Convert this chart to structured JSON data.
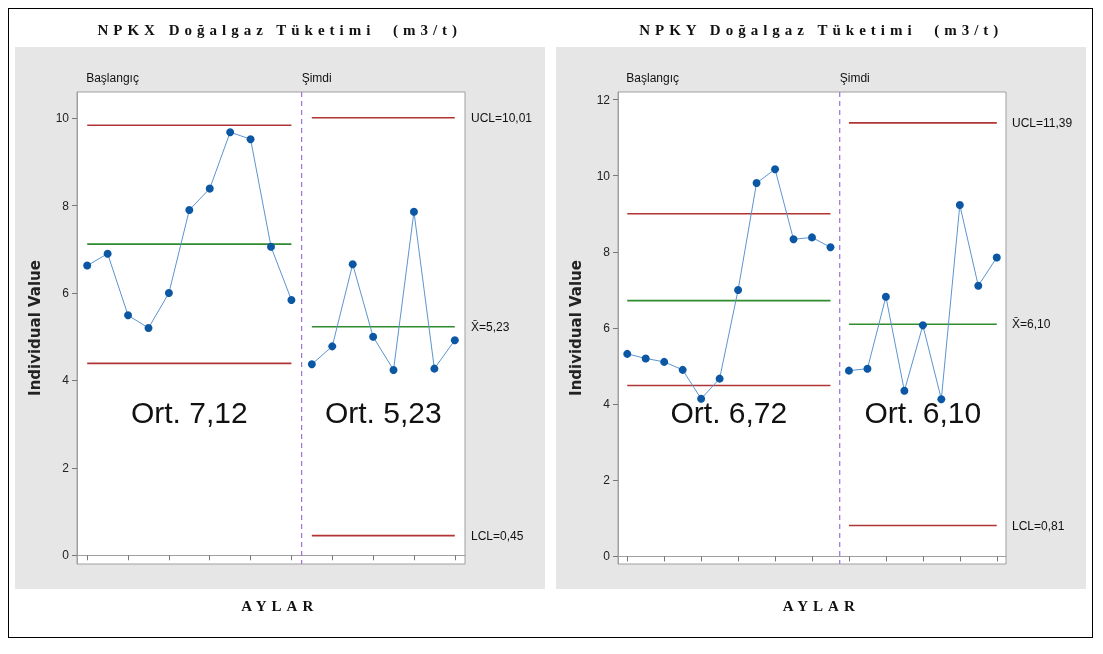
{
  "chart_data": [
    {
      "type": "line",
      "title": "NPKX Doğalgaz Tüketimi  (m3/t)",
      "xlabel": "AYLAR",
      "ylabel": "Individual Value",
      "categories": [
        null,
        null,
        null,
        null,
        null,
        null,
        null,
        null,
        null,
        null,
        null,
        null,
        null,
        null,
        null,
        null,
        null,
        null,
        null
      ],
      "ylim": [
        -0.2,
        10.6
      ],
      "yticks": [
        0,
        2,
        4,
        6,
        8,
        10
      ],
      "tick_labels": "y",
      "series": [
        {
          "color": "#0b57a4",
          "marker": "circle",
          "values": [
            6.63,
            6.9,
            5.49,
            5.2,
            6.0,
            7.9,
            8.39,
            9.68,
            9.52,
            7.06,
            5.84,
            null,
            null,
            null,
            null,
            null,
            null,
            null,
            null
          ]
        },
        {
          "color": "#0b57a4",
          "marker": "circle",
          "values": [
            null,
            null,
            null,
            null,
            null,
            null,
            null,
            null,
            null,
            null,
            null,
            4.37,
            4.78,
            6.66,
            5.0,
            4.24,
            7.86,
            4.27,
            4.92
          ]
        },
        {
          "color": "#b03434",
          "marker": "none",
          "values": [
            9.84,
            9.84,
            9.84,
            9.84,
            9.84,
            9.84,
            9.84,
            9.84,
            9.84,
            9.84,
            9.84,
            null,
            null,
            null,
            null,
            null,
            null,
            null,
            null
          ]
        },
        {
          "color": "#2e8b2e",
          "marker": "none",
          "values": [
            7.12,
            7.12,
            7.12,
            7.12,
            7.12,
            7.12,
            7.12,
            7.12,
            7.12,
            7.12,
            7.12,
            null,
            null,
            null,
            null,
            null,
            null,
            null,
            null
          ]
        },
        {
          "color": "#b03434",
          "marker": "none",
          "values": [
            4.39,
            4.39,
            4.39,
            4.39,
            4.39,
            4.39,
            4.39,
            4.39,
            4.39,
            4.39,
            4.39,
            null,
            null,
            null,
            null,
            null,
            null,
            null,
            null
          ]
        },
        {
          "color": "#b03434",
          "marker": "none",
          "values": [
            null,
            null,
            null,
            null,
            null,
            null,
            null,
            null,
            null,
            null,
            null,
            10.01,
            10.01,
            10.01,
            10.01,
            10.01,
            10.01,
            10.01,
            10.01
          ]
        },
        {
          "color": "#2e8b2e",
          "marker": "none",
          "values": [
            null,
            null,
            null,
            null,
            null,
            null,
            null,
            null,
            null,
            null,
            null,
            5.23,
            5.23,
            5.23,
            5.23,
            5.23,
            5.23,
            5.23,
            5.23
          ]
        },
        {
          "color": "#b03434",
          "marker": "none",
          "values": [
            null,
            null,
            null,
            null,
            null,
            null,
            null,
            null,
            null,
            null,
            null,
            0.45,
            0.45,
            0.45,
            0.45,
            0.45,
            0.45,
            0.45,
            0.45
          ]
        }
      ],
      "annotations": [
        "Başlangıç",
        "Şimdi",
        "Ort. 7,12",
        "Ort. 5,23",
        "UCL=10,01",
        "X̄=5,23",
        "LCL=0,45"
      ]
    },
    {
      "type": "line",
      "title": "NPKY Doğalgaz Tüketimi  (m3/t)",
      "xlabel": "AYLAR",
      "ylabel": "Individual Value",
      "categories": [
        null,
        null,
        null,
        null,
        null,
        null,
        null,
        null,
        null,
        null,
        null,
        null,
        null,
        null,
        null,
        null,
        null,
        null,
        null,
        null,
        null
      ],
      "ylim": [
        -0.2,
        12.2
      ],
      "yticks": [
        0,
        2,
        4,
        6,
        8,
        10,
        12
      ],
      "tick_labels": "y",
      "series": [
        {
          "color": "#0b57a4",
          "marker": "circle",
          "values": [
            5.32,
            5.2,
            5.11,
            4.9,
            4.14,
            4.67,
            7.0,
            9.81,
            10.17,
            8.33,
            8.38,
            8.12,
            null,
            null,
            null,
            null,
            null,
            null,
            null,
            null,
            null
          ]
        },
        {
          "color": "#0b57a4",
          "marker": "circle",
          "values": [
            null,
            null,
            null,
            null,
            null,
            null,
            null,
            null,
            null,
            null,
            null,
            null,
            4.88,
            4.93,
            6.82,
            4.35,
            6.07,
            4.13,
            9.23,
            7.11,
            7.85
          ]
        },
        {
          "color": "#b03434",
          "marker": "none",
          "values": [
            9.0,
            9.0,
            9.0,
            9.0,
            9.0,
            9.0,
            9.0,
            9.0,
            9.0,
            9.0,
            9.0,
            9.0,
            null,
            null,
            null,
            null,
            null,
            null,
            null,
            null,
            null
          ]
        },
        {
          "color": "#2e8b2e",
          "marker": "none",
          "values": [
            6.72,
            6.72,
            6.72,
            6.72,
            6.72,
            6.72,
            6.72,
            6.72,
            6.72,
            6.72,
            6.72,
            6.72,
            null,
            null,
            null,
            null,
            null,
            null,
            null,
            null,
            null
          ]
        },
        {
          "color": "#b03434",
          "marker": "none",
          "values": [
            4.49,
            4.49,
            4.49,
            4.49,
            4.49,
            4.49,
            4.49,
            4.49,
            4.49,
            4.49,
            4.49,
            4.49,
            null,
            null,
            null,
            null,
            null,
            null,
            null,
            null,
            null
          ]
        },
        {
          "color": "#b03434",
          "marker": "none",
          "values": [
            null,
            null,
            null,
            null,
            null,
            null,
            null,
            null,
            null,
            null,
            null,
            null,
            11.39,
            11.39,
            11.39,
            11.39,
            11.39,
            11.39,
            11.39,
            11.39,
            11.39
          ]
        },
        {
          "color": "#2e8b2e",
          "marker": "none",
          "values": [
            null,
            null,
            null,
            null,
            null,
            null,
            null,
            null,
            null,
            null,
            null,
            null,
            6.1,
            6.1,
            6.1,
            6.1,
            6.1,
            6.1,
            6.1,
            6.1,
            6.1
          ]
        },
        {
          "color": "#b03434",
          "marker": "none",
          "values": [
            null,
            null,
            null,
            null,
            null,
            null,
            null,
            null,
            null,
            null,
            null,
            null,
            0.81,
            0.81,
            0.81,
            0.81,
            0.81,
            0.81,
            0.81,
            0.81,
            0.81
          ]
        }
      ],
      "annotations": [
        "Başlangıç",
        "Şimdi",
        "Ort. 6,72",
        "Ort. 6,10",
        "UCL=11,39",
        "X̄=6,10",
        "LCL=0,81"
      ]
    }
  ]
}
